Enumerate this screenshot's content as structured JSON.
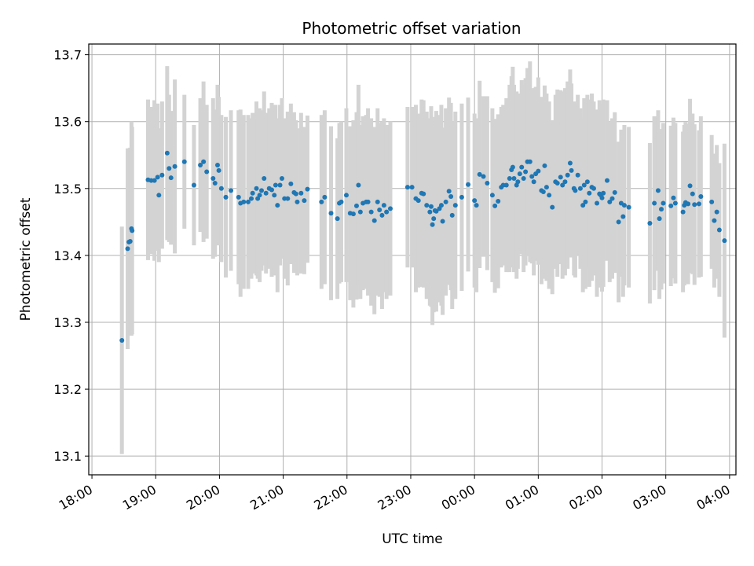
{
  "chart_data": {
    "type": "scatter",
    "title": "Photometric offset variation",
    "xlabel": "UTC time",
    "ylabel": "Photometric offset",
    "grid": true,
    "x_unit": "hours since 18:00 UTC",
    "xlim": [
      -0.05,
      10.1
    ],
    "ylim": [
      13.072,
      13.716
    ],
    "x_ticks": [
      0,
      1,
      2,
      3,
      4,
      5,
      6,
      7,
      8,
      9,
      10
    ],
    "x_tick_labels": [
      "18:00",
      "19:00",
      "20:00",
      "21:00",
      "22:00",
      "23:00",
      "00:00",
      "01:00",
      "02:00",
      "03:00",
      "04:00"
    ],
    "y_ticks": [
      13.1,
      13.2,
      13.3,
      13.4,
      13.5,
      13.6,
      13.7
    ],
    "y_tick_labels": [
      "13.1",
      "13.2",
      "13.3",
      "13.4",
      "13.5",
      "13.6",
      "13.7"
    ],
    "colors": {
      "point": "#1f77b4",
      "errorbar": "#d3d3d3",
      "grid": "#b0b0b0"
    },
    "series": [
      {
        "name": "Photometric offset",
        "points": [
          [
            0.47,
            13.273,
            0.17
          ],
          [
            0.56,
            13.41,
            0.15
          ],
          [
            0.58,
            13.42,
            0.14
          ],
          [
            0.6,
            13.421,
            0.14
          ],
          [
            0.62,
            13.44,
            0.16
          ],
          [
            0.63,
            13.437,
            0.155
          ],
          [
            0.88,
            13.513,
            0.12
          ],
          [
            0.93,
            13.512,
            0.11
          ],
          [
            0.98,
            13.512,
            0.12
          ],
          [
            1.03,
            13.517,
            0.11
          ],
          [
            1.05,
            13.49,
            0.1
          ],
          [
            1.1,
            13.52,
            0.11
          ],
          [
            1.18,
            13.553,
            0.13
          ],
          [
            1.21,
            13.53,
            0.11
          ],
          [
            1.24,
            13.516,
            0.1
          ],
          [
            1.3,
            13.533,
            0.13
          ],
          [
            1.45,
            13.54,
            0.1
          ],
          [
            1.6,
            13.505,
            0.09
          ],
          [
            1.7,
            13.535,
            0.1
          ],
          [
            1.75,
            13.54,
            0.12
          ],
          [
            1.8,
            13.525,
            0.1
          ],
          [
            1.9,
            13.515,
            0.12
          ],
          [
            1.93,
            13.508,
            0.11
          ],
          [
            1.97,
            13.535,
            0.12
          ],
          [
            1.99,
            13.527,
            0.11
          ],
          [
            2.03,
            13.5,
            0.11
          ],
          [
            2.1,
            13.487,
            0.12
          ],
          [
            2.18,
            13.497,
            0.12
          ],
          [
            2.3,
            13.487,
            0.13
          ],
          [
            2.33,
            13.478,
            0.14
          ],
          [
            2.38,
            13.48,
            0.13
          ],
          [
            2.45,
            13.48,
            0.13
          ],
          [
            2.5,
            13.485,
            0.12
          ],
          [
            2.52,
            13.493,
            0.12
          ],
          [
            2.58,
            13.5,
            0.13
          ],
          [
            2.6,
            13.485,
            0.12
          ],
          [
            2.63,
            13.49,
            0.13
          ],
          [
            2.66,
            13.497,
            0.12
          ],
          [
            2.7,
            13.515,
            0.13
          ],
          [
            2.73,
            13.493,
            0.12
          ],
          [
            2.78,
            13.5,
            0.12
          ],
          [
            2.82,
            13.498,
            0.13
          ],
          [
            2.86,
            13.49,
            0.12
          ],
          [
            2.88,
            13.505,
            0.12
          ],
          [
            2.91,
            13.475,
            0.13
          ],
          [
            2.95,
            13.505,
            0.12
          ],
          [
            2.98,
            13.515,
            0.12
          ],
          [
            3.02,
            13.485,
            0.12
          ],
          [
            3.07,
            13.485,
            0.13
          ],
          [
            3.12,
            13.507,
            0.12
          ],
          [
            3.17,
            13.494,
            0.12
          ],
          [
            3.2,
            13.492,
            0.11
          ],
          [
            3.22,
            13.48,
            0.11
          ],
          [
            3.28,
            13.493,
            0.12
          ],
          [
            3.33,
            13.482,
            0.11
          ],
          [
            3.38,
            13.499,
            0.11
          ],
          [
            3.6,
            13.48,
            0.13
          ],
          [
            3.65,
            13.487,
            0.13
          ],
          [
            3.75,
            13.463,
            0.13
          ],
          [
            3.85,
            13.455,
            0.12
          ],
          [
            3.88,
            13.478,
            0.12
          ],
          [
            3.91,
            13.48,
            0.12
          ],
          [
            3.99,
            13.49,
            0.13
          ],
          [
            4.05,
            13.463,
            0.13
          ],
          [
            4.1,
            13.462,
            0.14
          ],
          [
            4.15,
            13.474,
            0.14
          ],
          [
            4.18,
            13.505,
            0.15
          ],
          [
            4.21,
            13.465,
            0.13
          ],
          [
            4.25,
            13.478,
            0.13
          ],
          [
            4.3,
            13.48,
            0.13
          ],
          [
            4.33,
            13.48,
            0.14
          ],
          [
            4.38,
            13.465,
            0.14
          ],
          [
            4.43,
            13.452,
            0.14
          ],
          [
            4.48,
            13.48,
            0.14
          ],
          [
            4.51,
            13.468,
            0.13
          ],
          [
            4.55,
            13.46,
            0.14
          ],
          [
            4.58,
            13.475,
            0.13
          ],
          [
            4.62,
            13.465,
            0.13
          ],
          [
            4.68,
            13.47,
            0.13
          ],
          [
            4.95,
            13.502,
            0.12
          ],
          [
            5.02,
            13.502,
            0.12
          ],
          [
            5.08,
            13.485,
            0.14
          ],
          [
            5.12,
            13.482,
            0.13
          ],
          [
            5.17,
            13.493,
            0.14
          ],
          [
            5.2,
            13.492,
            0.14
          ],
          [
            5.25,
            13.475,
            0.14
          ],
          [
            5.3,
            13.465,
            0.14
          ],
          [
            5.32,
            13.473,
            0.15
          ],
          [
            5.34,
            13.446,
            0.15
          ],
          [
            5.36,
            13.455,
            0.14
          ],
          [
            5.38,
            13.467,
            0.14
          ],
          [
            5.4,
            13.466,
            0.15
          ],
          [
            5.45,
            13.47,
            0.14
          ],
          [
            5.48,
            13.475,
            0.15
          ],
          [
            5.5,
            13.451,
            0.14
          ],
          [
            5.55,
            13.48,
            0.14
          ],
          [
            5.6,
            13.496,
            0.14
          ],
          [
            5.63,
            13.488,
            0.14
          ],
          [
            5.65,
            13.46,
            0.14
          ],
          [
            5.7,
            13.475,
            0.14
          ],
          [
            5.8,
            13.487,
            0.14
          ],
          [
            5.9,
            13.506,
            0.13
          ],
          [
            6.0,
            13.482,
            0.13
          ],
          [
            6.03,
            13.475,
            0.13
          ],
          [
            6.08,
            13.521,
            0.14
          ],
          [
            6.14,
            13.518,
            0.12
          ],
          [
            6.2,
            13.508,
            0.13
          ],
          [
            6.28,
            13.49,
            0.13
          ],
          [
            6.32,
            13.474,
            0.13
          ],
          [
            6.37,
            13.481,
            0.13
          ],
          [
            6.42,
            13.502,
            0.12
          ],
          [
            6.45,
            13.505,
            0.12
          ],
          [
            6.5,
            13.505,
            0.13
          ],
          [
            6.55,
            13.515,
            0.14
          ],
          [
            6.58,
            13.528,
            0.14
          ],
          [
            6.6,
            13.532,
            0.15
          ],
          [
            6.62,
            13.515,
            0.14
          ],
          [
            6.66,
            13.505,
            0.14
          ],
          [
            6.68,
            13.51,
            0.13
          ],
          [
            6.71,
            13.522,
            0.12
          ],
          [
            6.74,
            13.532,
            0.13
          ],
          [
            6.77,
            13.515,
            0.14
          ],
          [
            6.8,
            13.525,
            0.14
          ],
          [
            6.83,
            13.54,
            0.14
          ],
          [
            6.87,
            13.54,
            0.15
          ],
          [
            6.9,
            13.518,
            0.13
          ],
          [
            6.93,
            13.51,
            0.14
          ],
          [
            6.96,
            13.522,
            0.13
          ],
          [
            7.0,
            13.526,
            0.14
          ],
          [
            7.05,
            13.497,
            0.14
          ],
          [
            7.08,
            13.495,
            0.13
          ],
          [
            7.1,
            13.534,
            0.12
          ],
          [
            7.13,
            13.502,
            0.14
          ],
          [
            7.17,
            13.49,
            0.14
          ],
          [
            7.22,
            13.472,
            0.13
          ],
          [
            7.27,
            13.51,
            0.13
          ],
          [
            7.3,
            13.508,
            0.14
          ],
          [
            7.35,
            13.517,
            0.13
          ],
          [
            7.38,
            13.505,
            0.14
          ],
          [
            7.42,
            13.51,
            0.14
          ],
          [
            7.46,
            13.52,
            0.14
          ],
          [
            7.5,
            13.538,
            0.14
          ],
          [
            7.52,
            13.527,
            0.13
          ],
          [
            7.56,
            13.5,
            0.13
          ],
          [
            7.58,
            13.497,
            0.13
          ],
          [
            7.62,
            13.52,
            0.12
          ],
          [
            7.66,
            13.5,
            0.12
          ],
          [
            7.7,
            13.475,
            0.13
          ],
          [
            7.72,
            13.505,
            0.13
          ],
          [
            7.74,
            13.48,
            0.13
          ],
          [
            7.77,
            13.51,
            0.13
          ],
          [
            7.8,
            13.493,
            0.14
          ],
          [
            7.84,
            13.502,
            0.14
          ],
          [
            7.87,
            13.5,
            0.13
          ],
          [
            7.92,
            13.478,
            0.14
          ],
          [
            7.96,
            13.492,
            0.14
          ],
          [
            7.98,
            13.49,
            0.13
          ],
          [
            8.0,
            13.486,
            0.14
          ],
          [
            8.02,
            13.493,
            0.14
          ],
          [
            8.08,
            13.512,
            0.12
          ],
          [
            8.12,
            13.48,
            0.12
          ],
          [
            8.16,
            13.485,
            0.12
          ],
          [
            8.2,
            13.494,
            0.12
          ],
          [
            8.26,
            13.45,
            0.12
          ],
          [
            8.3,
            13.478,
            0.11
          ],
          [
            8.33,
            13.458,
            0.12
          ],
          [
            8.35,
            13.475,
            0.12
          ],
          [
            8.42,
            13.472,
            0.12
          ],
          [
            8.75,
            13.448,
            0.12
          ],
          [
            8.82,
            13.478,
            0.13
          ],
          [
            8.88,
            13.497,
            0.12
          ],
          [
            8.9,
            13.455,
            0.12
          ],
          [
            8.93,
            13.469,
            0.12
          ],
          [
            8.96,
            13.478,
            0.12
          ],
          [
            9.08,
            13.474,
            0.12
          ],
          [
            9.12,
            13.486,
            0.12
          ],
          [
            9.15,
            13.478,
            0.12
          ],
          [
            9.27,
            13.465,
            0.12
          ],
          [
            9.29,
            13.475,
            0.12
          ],
          [
            9.31,
            13.479,
            0.12
          ],
          [
            9.35,
            13.477,
            0.12
          ],
          [
            9.38,
            13.504,
            0.13
          ],
          [
            9.42,
            13.492,
            0.12
          ],
          [
            9.45,
            13.476,
            0.12
          ],
          [
            9.52,
            13.477,
            0.11
          ],
          [
            9.55,
            13.488,
            0.12
          ],
          [
            9.72,
            13.48,
            0.1
          ],
          [
            9.76,
            13.452,
            0.1
          ],
          [
            9.8,
            13.465,
            0.1
          ],
          [
            9.84,
            13.438,
            0.1
          ],
          [
            9.92,
            13.422,
            0.145
          ]
        ]
      }
    ]
  }
}
